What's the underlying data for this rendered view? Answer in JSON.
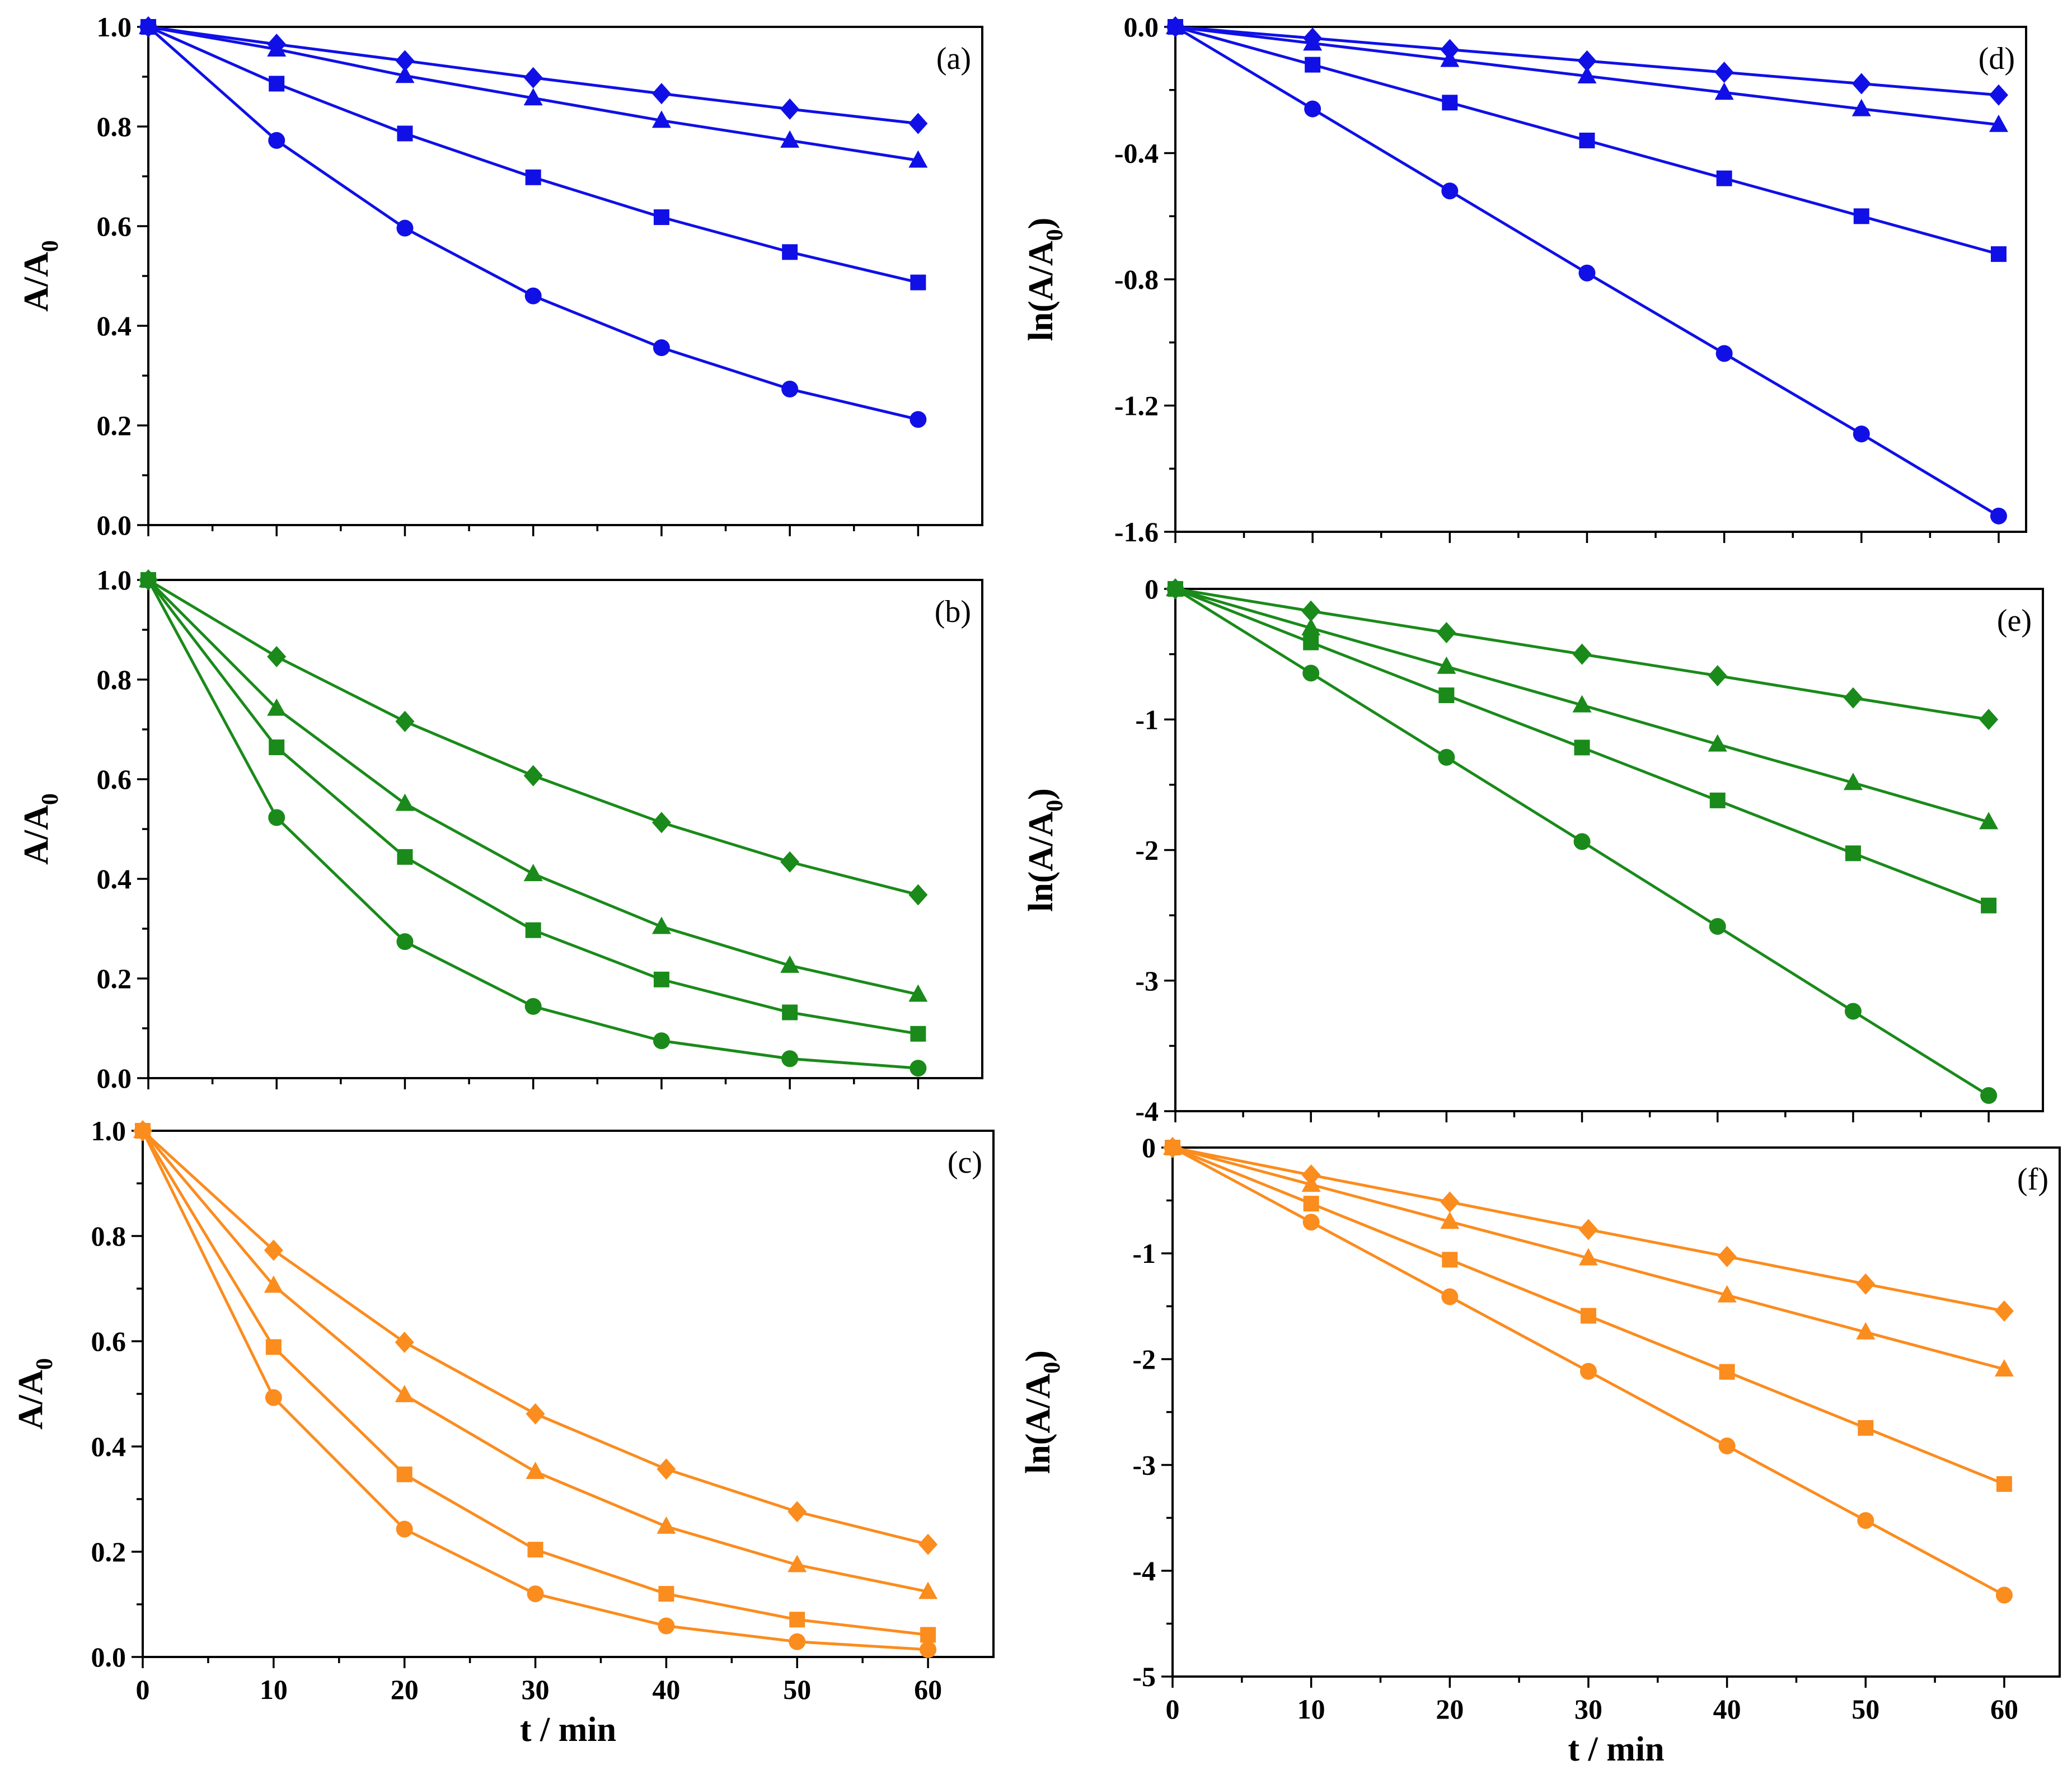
{
  "colors": {
    "blue": "#1010e6",
    "green": "#1a8a1a",
    "orange": "#fb8c1e"
  },
  "chart_data": [
    {
      "id": "a",
      "type": "line",
      "panel_label": "(a)",
      "color": "blue",
      "ylabel": "A/A",
      "ylabel_sub": "0",
      "xlabel": "",
      "xlim": [
        0,
        65
      ],
      "ylim": [
        0,
        1
      ],
      "yticks": [
        0,
        0.2,
        0.4,
        0.6,
        0.8,
        1.0
      ],
      "ytick_labels": [
        "0.0",
        "0.2",
        "0.4",
        "0.6",
        "0.8",
        "1.0"
      ],
      "xticks": [
        0,
        10,
        20,
        30,
        40,
        50,
        60
      ],
      "xtick_labels": [],
      "x": [
        0,
        10,
        20,
        30,
        40,
        50,
        60
      ],
      "series": [
        {
          "name": "diamond",
          "marker": "diamond",
          "values": [
            1.0,
            0.965,
            0.932,
            0.898,
            0.866,
            0.835,
            0.806
          ]
        },
        {
          "name": "triangle",
          "marker": "triangle",
          "values": [
            1.0,
            0.955,
            0.902,
            0.857,
            0.812,
            0.772,
            0.732
          ]
        },
        {
          "name": "square",
          "marker": "square",
          "values": [
            1.0,
            0.886,
            0.786,
            0.698,
            0.618,
            0.548,
            0.487
          ]
        },
        {
          "name": "circle",
          "marker": "circle",
          "values": [
            1.0,
            0.772,
            0.596,
            0.46,
            0.356,
            0.273,
            0.212
          ]
        }
      ]
    },
    {
      "id": "b",
      "type": "line",
      "panel_label": "(b)",
      "color": "green",
      "ylabel": "A/A",
      "ylabel_sub": "0",
      "xlabel": "",
      "xlim": [
        0,
        65
      ],
      "ylim": [
        0,
        1
      ],
      "yticks": [
        0,
        0.2,
        0.4,
        0.6,
        0.8,
        1.0
      ],
      "ytick_labels": [
        "0.0",
        "0.2",
        "0.4",
        "0.6",
        "0.8",
        "1.0"
      ],
      "xticks": [
        0,
        10,
        20,
        30,
        40,
        50,
        60
      ],
      "xtick_labels": [],
      "x": [
        0,
        10,
        20,
        30,
        40,
        50,
        60
      ],
      "series": [
        {
          "name": "diamond",
          "marker": "diamond",
          "values": [
            1.0,
            0.846,
            0.716,
            0.607,
            0.513,
            0.434,
            0.368
          ]
        },
        {
          "name": "triangle",
          "marker": "triangle",
          "values": [
            1.0,
            0.742,
            0.551,
            0.41,
            0.304,
            0.226,
            0.168
          ]
        },
        {
          "name": "square",
          "marker": "square",
          "values": [
            1.0,
            0.664,
            0.444,
            0.297,
            0.198,
            0.132,
            0.089
          ]
        },
        {
          "name": "circle",
          "marker": "circle",
          "values": [
            1.0,
            0.523,
            0.274,
            0.144,
            0.075,
            0.039,
            0.02
          ]
        }
      ]
    },
    {
      "id": "c",
      "type": "line",
      "panel_label": "(c)",
      "color": "orange",
      "ylabel": "A/A",
      "ylabel_sub": "0",
      "xlabel": "t / min",
      "xlim": [
        0,
        65
      ],
      "ylim": [
        0,
        1
      ],
      "yticks": [
        0,
        0.2,
        0.4,
        0.6,
        0.8,
        1.0
      ],
      "ytick_labels": [
        "0.0",
        "0.2",
        "0.4",
        "0.6",
        "0.8",
        "1.0"
      ],
      "xticks": [
        0,
        10,
        20,
        30,
        40,
        50,
        60
      ],
      "xtick_labels": [
        "0",
        "10",
        "20",
        "30",
        "40",
        "50",
        "60"
      ],
      "x": [
        0,
        10,
        20,
        30,
        40,
        50,
        60
      ],
      "series": [
        {
          "name": "diamond",
          "marker": "diamond",
          "values": [
            1.0,
            0.773,
            0.598,
            0.462,
            0.357,
            0.276,
            0.214
          ]
        },
        {
          "name": "triangle",
          "marker": "triangle",
          "values": [
            1.0,
            0.706,
            0.498,
            0.352,
            0.248,
            0.175,
            0.124
          ]
        },
        {
          "name": "square",
          "marker": "square",
          "values": [
            1.0,
            0.589,
            0.347,
            0.204,
            0.12,
            0.071,
            0.042
          ]
        },
        {
          "name": "circle",
          "marker": "circle",
          "values": [
            1.0,
            0.493,
            0.243,
            0.12,
            0.059,
            0.029,
            0.014
          ]
        }
      ]
    },
    {
      "id": "d",
      "type": "line",
      "panel_label": "(d)",
      "color": "blue",
      "ylabel": "ln(A/A",
      "ylabel_sub": "0",
      "ylabel_tail": ")",
      "xlabel": "",
      "xlim": [
        0,
        62
      ],
      "ylim": [
        -1.6,
        0
      ],
      "yticks": [
        -1.6,
        -1.2,
        -0.8,
        -0.4,
        0.0
      ],
      "ytick_labels": [
        "-1.6",
        "-1.2",
        "-0.8",
        "-0.4",
        "0.0"
      ],
      "yminor": [
        -1.4,
        -1.0,
        -0.6,
        -0.2
      ],
      "xticks": [
        0,
        10,
        20,
        30,
        40,
        50,
        60
      ],
      "xtick_labels": [],
      "x": [
        0,
        10,
        20,
        30,
        40,
        50,
        60
      ],
      "series": [
        {
          "name": "diamond",
          "marker": "diamond",
          "values": [
            0,
            -0.036,
            -0.072,
            -0.108,
            -0.144,
            -0.18,
            -0.216
          ]
        },
        {
          "name": "triangle",
          "marker": "triangle",
          "values": [
            0,
            -0.052,
            -0.104,
            -0.156,
            -0.208,
            -0.26,
            -0.31
          ]
        },
        {
          "name": "square",
          "marker": "square",
          "values": [
            0,
            -0.12,
            -0.24,
            -0.36,
            -0.48,
            -0.6,
            -0.72
          ]
        },
        {
          "name": "circle",
          "marker": "circle",
          "values": [
            0,
            -0.26,
            -0.52,
            -0.78,
            -1.035,
            -1.29,
            -1.55
          ]
        }
      ]
    },
    {
      "id": "e",
      "type": "line",
      "panel_label": "(e)",
      "color": "green",
      "ylabel": "ln(A/A",
      "ylabel_sub": "0",
      "ylabel_tail": ")",
      "xlabel": "",
      "xlim": [
        0,
        64
      ],
      "ylim": [
        -4,
        0
      ],
      "yticks": [
        -4,
        -3,
        -2,
        -1,
        0
      ],
      "ytick_labels": [
        "-4",
        "-3",
        "-2",
        "-1",
        "0"
      ],
      "yminor": [
        -3.5,
        -2.5,
        -1.5,
        -0.5
      ],
      "xticks": [
        0,
        10,
        20,
        30,
        40,
        50,
        60
      ],
      "xtick_labels": [],
      "x": [
        0,
        10,
        20,
        30,
        40,
        50,
        60
      ],
      "series": [
        {
          "name": "diamond",
          "marker": "diamond",
          "values": [
            0,
            -0.17,
            -0.335,
            -0.5,
            -0.665,
            -0.835,
            -1.0
          ]
        },
        {
          "name": "triangle",
          "marker": "triangle",
          "values": [
            0,
            -0.3,
            -0.595,
            -0.89,
            -1.19,
            -1.485,
            -1.785
          ]
        },
        {
          "name": "square",
          "marker": "square",
          "values": [
            0,
            -0.41,
            -0.815,
            -1.215,
            -1.62,
            -2.025,
            -2.425
          ]
        },
        {
          "name": "circle",
          "marker": "circle",
          "values": [
            0,
            -0.645,
            -1.29,
            -1.935,
            -2.585,
            -3.235,
            -3.88
          ]
        }
      ]
    },
    {
      "id": "f",
      "type": "line",
      "panel_label": "(f)",
      "color": "orange",
      "ylabel": "ln(A/A",
      "ylabel_sub": "0",
      "ylabel_tail": ")",
      "xlabel": "t / min",
      "xlim": [
        0,
        64
      ],
      "ylim": [
        -5,
        0
      ],
      "yticks": [
        -5,
        -4,
        -3,
        -2,
        -1,
        0
      ],
      "ytick_labels": [
        "-5",
        "-4",
        "-3",
        "-2",
        "-1",
        "0"
      ],
      "yminor": [
        -4.5,
        -3.5,
        -2.5,
        -1.5,
        -0.5
      ],
      "xticks": [
        0,
        10,
        20,
        30,
        40,
        50,
        60
      ],
      "xtick_labels": [
        "0",
        "10",
        "20",
        "30",
        "40",
        "50",
        "60"
      ],
      "x": [
        0,
        10,
        20,
        30,
        40,
        50,
        60
      ],
      "series": [
        {
          "name": "diamond",
          "marker": "diamond",
          "values": [
            0,
            -0.26,
            -0.515,
            -0.775,
            -1.03,
            -1.29,
            -1.545
          ]
        },
        {
          "name": "triangle",
          "marker": "triangle",
          "values": [
            0,
            -0.35,
            -0.7,
            -1.045,
            -1.395,
            -1.745,
            -2.095
          ]
        },
        {
          "name": "square",
          "marker": "square",
          "values": [
            0,
            -0.53,
            -1.06,
            -1.59,
            -2.12,
            -2.65,
            -3.18
          ]
        },
        {
          "name": "circle",
          "marker": "circle",
          "values": [
            0,
            -0.705,
            -1.41,
            -2.115,
            -2.82,
            -3.525,
            -4.23
          ]
        }
      ]
    }
  ]
}
